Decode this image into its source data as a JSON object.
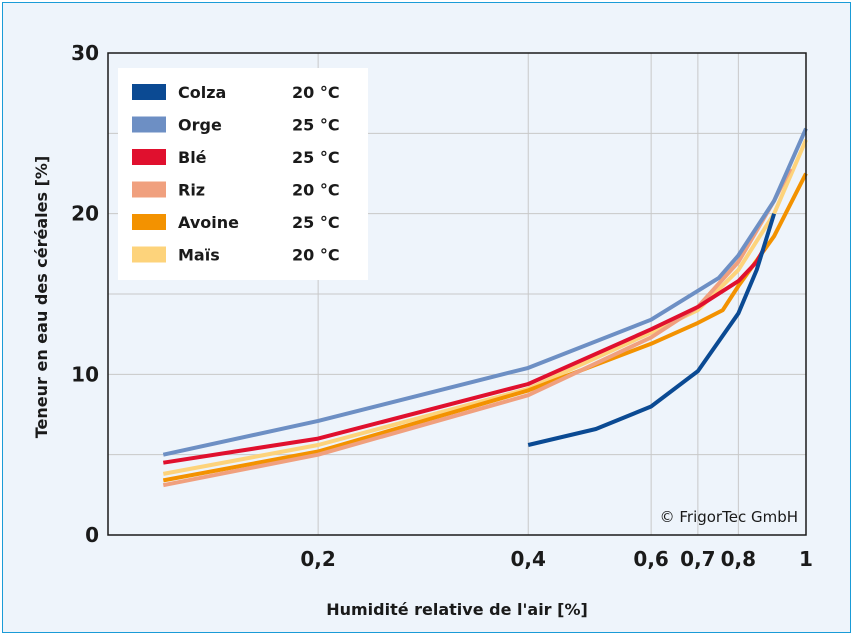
{
  "chart_data": {
    "type": "line",
    "title": "",
    "xlabel": "Humidité relative de l'air [%]",
    "ylabel": "Teneur en eau des céréales [%]",
    "xscale": "log",
    "xlim": [
      0.1,
      1
    ],
    "ylim": [
      0,
      30
    ],
    "x_ticks": [
      {
        "value": 0.2,
        "label": "0,2"
      },
      {
        "value": 0.4,
        "label": "0,4"
      },
      {
        "value": 0.6,
        "label": "0,6"
      },
      {
        "value": 0.7,
        "label": "0,7"
      },
      {
        "value": 0.8,
        "label": "0,8"
      },
      {
        "value": 1,
        "label": "1"
      }
    ],
    "y_ticks": [
      {
        "value": 0,
        "label": "0"
      },
      {
        "value": 10,
        "label": "10"
      },
      {
        "value": 20,
        "label": "20"
      },
      {
        "value": 30,
        "label": "30"
      }
    ],
    "grid": true,
    "legend_position": "top-left",
    "copyright": "© FrigorTec GmbH",
    "series": [
      {
        "name": "Colza",
        "temp": "20 °C",
        "color": "#0b4a93",
        "x": [
          0.4,
          0.5,
          0.6,
          0.7,
          0.8,
          0.85,
          0.9
        ],
        "y": [
          5.6,
          6.6,
          8.0,
          10.2,
          13.8,
          16.5,
          20.0
        ]
      },
      {
        "name": "Orge",
        "temp": "25 °C",
        "color": "#6d8fc4",
        "x": [
          0.12,
          0.2,
          0.4,
          0.6,
          0.7,
          0.75,
          0.8,
          0.9,
          1.0
        ],
        "y": [
          5.0,
          7.1,
          10.4,
          13.4,
          15.2,
          16.0,
          17.4,
          20.8,
          25.3
        ]
      },
      {
        "name": "Blé",
        "temp": "25 °C",
        "color": "#e0102e",
        "x": [
          0.12,
          0.2,
          0.4,
          0.6,
          0.7,
          0.8,
          0.85,
          0.87
        ],
        "y": [
          4.5,
          6.0,
          9.4,
          12.8,
          14.2,
          15.8,
          17.0,
          17.8
        ]
      },
      {
        "name": "Riz",
        "temp": "20 °C",
        "color": "#f0a07e",
        "x": [
          0.12,
          0.2,
          0.4,
          0.6,
          0.7,
          0.8,
          0.9,
          0.95
        ],
        "y": [
          3.1,
          5.0,
          8.7,
          12.3,
          14.2,
          17.0,
          20.8,
          22.8
        ]
      },
      {
        "name": "Avoine",
        "temp": "25 °C",
        "color": "#f39200",
        "x": [
          0.12,
          0.2,
          0.4,
          0.6,
          0.7,
          0.76,
          0.8,
          0.9,
          1.0
        ],
        "y": [
          3.4,
          5.2,
          9.0,
          11.9,
          13.2,
          14.0,
          15.5,
          18.6,
          22.5
        ]
      },
      {
        "name": "Maïs",
        "temp": "20 °C",
        "color": "#fdd37b",
        "x": [
          0.12,
          0.2,
          0.4,
          0.6,
          0.7,
          0.8,
          0.9,
          1.0
        ],
        "y": [
          3.8,
          5.6,
          9.1,
          12.6,
          14.0,
          16.5,
          20.0,
          24.6
        ]
      }
    ]
  }
}
